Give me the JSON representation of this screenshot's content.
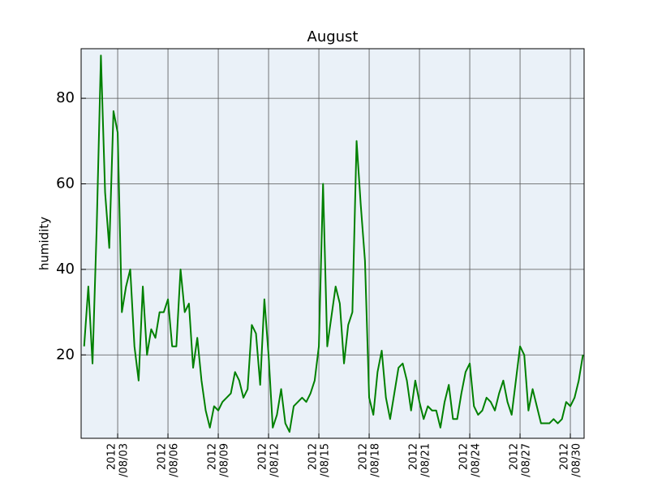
{
  "chart_data": {
    "type": "line",
    "title": "August",
    "y_label": "humidity",
    "x": [
      1,
      1.25,
      1.5,
      1.75,
      2,
      2.25,
      2.5,
      2.75,
      3,
      3.25,
      3.5,
      3.75,
      4,
      4.25,
      4.5,
      4.75,
      5,
      5.25,
      5.5,
      5.75,
      6,
      6.25,
      6.5,
      6.75,
      7,
      7.25,
      7.5,
      7.75,
      8,
      8.25,
      8.5,
      8.75,
      9,
      9.25,
      9.5,
      9.75,
      10,
      10.25,
      10.5,
      10.75,
      11,
      11.25,
      11.5,
      11.75,
      12,
      12.25,
      12.5,
      12.75,
      13,
      13.25,
      13.5,
      13.75,
      14,
      14.25,
      14.5,
      14.75,
      15,
      15.25,
      15.5,
      15.75,
      16,
      16.25,
      16.5,
      16.75,
      17,
      17.25,
      17.5,
      17.75,
      18,
      18.25,
      18.5,
      18.75,
      19,
      19.25,
      19.5,
      19.75,
      20,
      20.25,
      20.5,
      20.75,
      21,
      21.25,
      21.5,
      21.75,
      22,
      22.25,
      22.5,
      22.75,
      23,
      23.25,
      23.5,
      23.75,
      24,
      24.25,
      24.5,
      24.75,
      25,
      25.25,
      25.5,
      25.75,
      26,
      26.25,
      26.5,
      26.75,
      27,
      27.25,
      27.5,
      27.75,
      28,
      28.25,
      28.5,
      28.75,
      29,
      29.25,
      29.5,
      29.75,
      30,
      30.25,
      30.5,
      30.75
    ],
    "series": [
      {
        "name": "humidity",
        "color": "#008000",
        "values": [
          22,
          36,
          18,
          50,
          90,
          58,
          45,
          77,
          72,
          30,
          36,
          40,
          22,
          14,
          36,
          20,
          26,
          24,
          30,
          30,
          33,
          22,
          22,
          40,
          30,
          32,
          17,
          24,
          14,
          7,
          3,
          8,
          7,
          9,
          10,
          11,
          16,
          14,
          10,
          12,
          27,
          25,
          13,
          33,
          20,
          3,
          6,
          12,
          4,
          2,
          8,
          9,
          10,
          9,
          11,
          14,
          22,
          60,
          22,
          29,
          36,
          32,
          18,
          27,
          30,
          70,
          55,
          42,
          10,
          6,
          16,
          21,
          10,
          5,
          11,
          17,
          18,
          14,
          7,
          14,
          9,
          5,
          8,
          7,
          7,
          3,
          9,
          13,
          5,
          5,
          11,
          16,
          18,
          8,
          6,
          7,
          10,
          9,
          7,
          11,
          14,
          9,
          6,
          14,
          22,
          20,
          7,
          12,
          8,
          4,
          4,
          4,
          5,
          4,
          5,
          9,
          8,
          10,
          14,
          20
        ]
      }
    ],
    "xlim": [
      0.82,
      30.82
    ],
    "xticks": [
      {
        "value": 3,
        "label": "2012\n/08/03"
      },
      {
        "value": 6,
        "label": "2012\n/08/06"
      },
      {
        "value": 9,
        "label": "2012\n/08/09"
      },
      {
        "value": 12,
        "label": "2012\n/08/12"
      },
      {
        "value": 15,
        "label": "2012\n/08/15"
      },
      {
        "value": 18,
        "label": "2012\n/08/18"
      },
      {
        "value": 21,
        "label": "2012\n/08/21"
      },
      {
        "value": 24,
        "label": "2012\n/08/24"
      },
      {
        "value": 27,
        "label": "2012\n/08/27"
      },
      {
        "value": 30,
        "label": "2012\n/08/30"
      }
    ],
    "ylim": [
      0.5,
      91.6
    ],
    "yticks": [
      20,
      40,
      60,
      80
    ],
    "grid": true,
    "background": "#eaf1f8"
  }
}
